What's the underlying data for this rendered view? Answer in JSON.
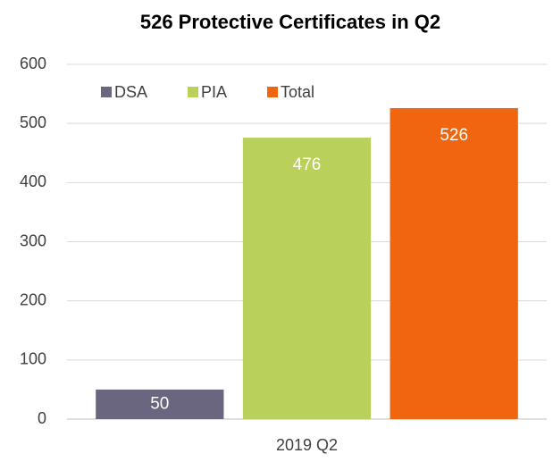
{
  "chart_data": {
    "type": "bar",
    "title": "526 Protective Certificates in Q2",
    "categories": [
      "2019 Q2"
    ],
    "series": [
      {
        "name": "DSA",
        "color": "#6b6680",
        "values": [
          50
        ]
      },
      {
        "name": "PIA",
        "color": "#b9d15a",
        "values": [
          476
        ]
      },
      {
        "name": "Total",
        "color": "#f0650f",
        "values": [
          526
        ]
      }
    ],
    "ylim": [
      0,
      600
    ],
    "yticks": [
      0,
      100,
      200,
      300,
      400,
      500,
      600
    ],
    "grid": true,
    "legend": "top-left"
  }
}
